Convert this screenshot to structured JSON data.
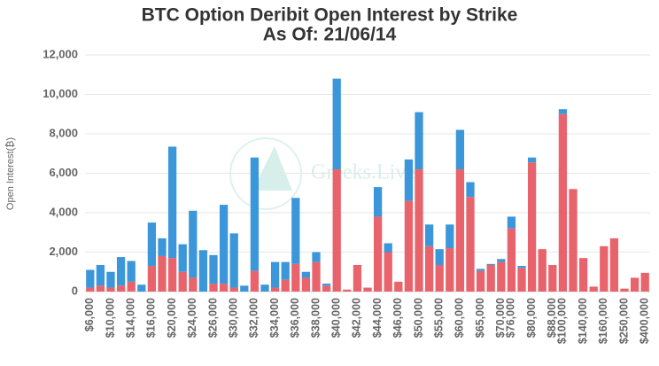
{
  "chart_data": {
    "type": "stacked_bar",
    "title": "BTC Option Deribit Open Interest by Strike",
    "subtitle": "As Of: 21/06/14",
    "y_label": "Open Interest(₿)",
    "watermark": "Greeks.Live",
    "categories": [
      "$6,000",
      null,
      "$10,000",
      null,
      "$14,000",
      null,
      "$16,000",
      null,
      "$20,000",
      null,
      "$24,000",
      null,
      "$26,000",
      null,
      "$30,000",
      null,
      "$32,000",
      null,
      "$34,000",
      null,
      "$36,000",
      null,
      "$38,000",
      null,
      "$40,000",
      null,
      "$42,000",
      null,
      "$44,000",
      null,
      "$46,000",
      null,
      "$50,000",
      null,
      "$55,000",
      null,
      "$60,000",
      null,
      "$65,000",
      null,
      "$70,000",
      "$76,000",
      null,
      "$80,000",
      null,
      "$88,000",
      "$100,000",
      null,
      "$140,000",
      null,
      "$160,000",
      null,
      "$250,000",
      null,
      "$400,000"
    ],
    "series": [
      {
        "color": "#e8636b",
        "values": [
          200,
          300,
          200,
          300,
          500,
          0,
          1300,
          1800,
          1700,
          1000,
          700,
          0,
          400,
          400,
          200,
          0,
          1050,
          0,
          200,
          600,
          1400,
          700,
          1500,
          300,
          6200,
          100,
          1350,
          200,
          3800,
          2000,
          500,
          4600,
          6200,
          2300,
          1350,
          2200,
          6200,
          4800,
          1050,
          1350,
          1500,
          3200,
          1200,
          6550,
          2150,
          1350,
          9000,
          5200,
          1700,
          250,
          2300,
          2700,
          150,
          700,
          950
        ]
      },
      {
        "color": "#3b97d9",
        "values": [
          900,
          1050,
          800,
          1450,
          1050,
          350,
          2200,
          900,
          5650,
          1400,
          3400,
          2100,
          1450,
          4000,
          2750,
          300,
          5750,
          350,
          1300,
          900,
          3350,
          300,
          500,
          100,
          4600,
          0,
          0,
          0,
          1500,
          450,
          0,
          2100,
          2900,
          1100,
          800,
          1200,
          2000,
          750,
          100,
          50,
          150,
          600,
          100,
          250,
          0,
          0,
          250,
          0,
          0,
          0,
          0,
          0,
          0,
          0,
          0
        ]
      }
    ],
    "ylim": [
      0,
      12000
    ],
    "yticks": [
      0,
      {
        "value": 2000,
        "label": "2,000"
      },
      {
        "value": 4000,
        "label": "4,000"
      },
      {
        "value": 6000,
        "label": "6,000"
      },
      {
        "value": 8000,
        "label": "8,000"
      },
      {
        "value": 10000,
        "label": "10,000"
      },
      {
        "value": 12000,
        "label": "12,000"
      }
    ],
    "grid": true
  }
}
